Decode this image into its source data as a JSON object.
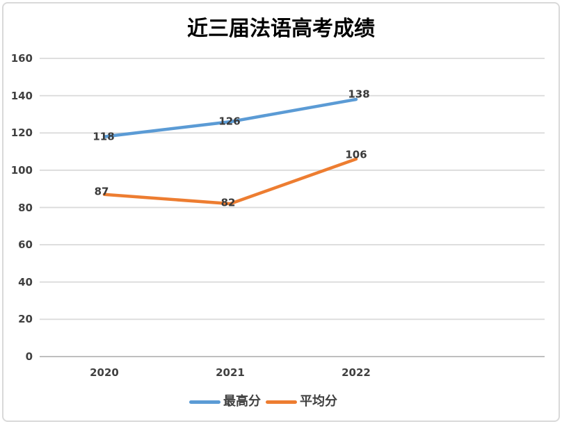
{
  "chart_data": {
    "type": "line",
    "title": "近三届法语高考成绩",
    "categories": [
      "2020",
      "2021",
      "2022"
    ],
    "series": [
      {
        "name": "最高分",
        "color": "#5B9BD5",
        "values": [
          118,
          126,
          138
        ]
      },
      {
        "name": "平均分",
        "color": "#ED7D31",
        "values": [
          87,
          82,
          106
        ]
      }
    ],
    "ylim": [
      0,
      160
    ],
    "ytick_step": 20,
    "grid": true,
    "data_labels": true,
    "legend_position": "bottom",
    "xlabel": "",
    "ylabel": ""
  },
  "colors": {
    "background": "#ffffff",
    "border": "#d9d9d9",
    "gridline": "#d9d9d9",
    "axis_line": "#bfbfbf",
    "tick_label": "#404040",
    "data_label": "#3a3a3a",
    "title": "#000000"
  }
}
